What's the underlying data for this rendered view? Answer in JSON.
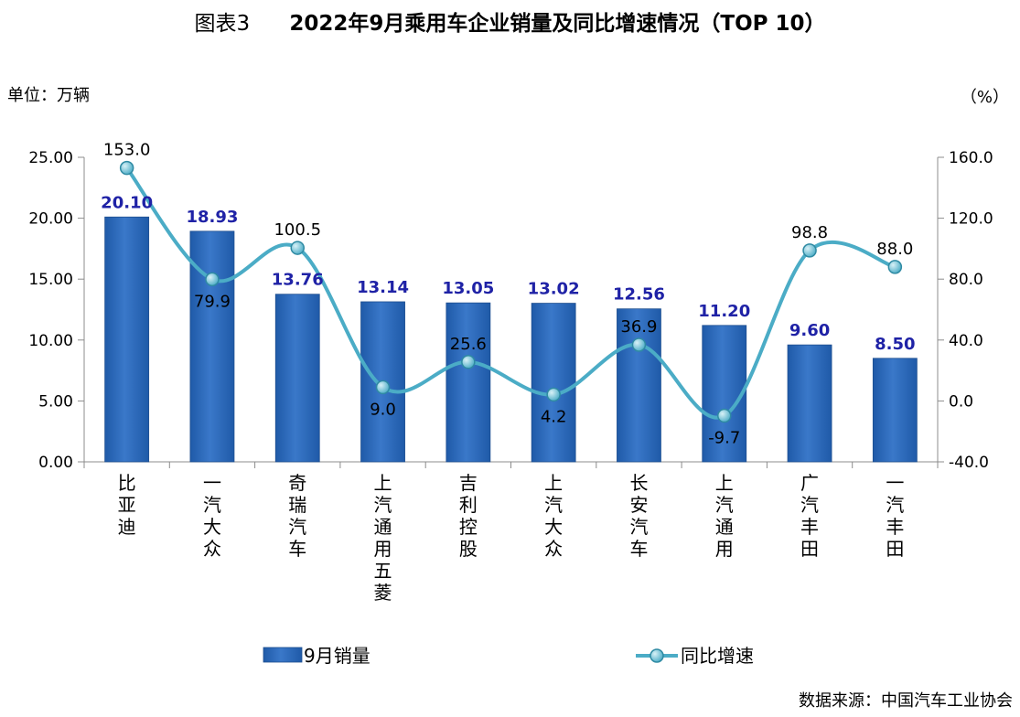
{
  "header": {
    "prefix": "图表3",
    "title": "2022年9月乘用车企业销量及同比增速情况（TOP 10）"
  },
  "units": {
    "left": "单位：万辆",
    "right": "（%）"
  },
  "source": "数据来源：中国汽车工业协会",
  "colors": {
    "bar": "#3a78c9",
    "bar_dark": "#1f5aa8",
    "line": "#4bacc6",
    "bar_label": "#1f22a6"
  },
  "chart_data": {
    "type": "bar",
    "categories": [
      "比亚迪",
      "一汽大众",
      "奇瑞汽车",
      "上汽通用五菱",
      "吉利控股",
      "上汽大众",
      "长安汽车",
      "上汽通用",
      "广汽丰田",
      "一汽丰田"
    ],
    "series": [
      {
        "name": "9月销量",
        "type": "bar",
        "axis": "left",
        "values": [
          20.1,
          18.93,
          13.76,
          13.14,
          13.05,
          13.02,
          12.56,
          11.2,
          9.6,
          8.5
        ],
        "labels": [
          "20.10",
          "18.93",
          "13.76",
          "13.14",
          "13.05",
          "13.02",
          "12.56",
          "11.20",
          "9.60",
          "8.50"
        ]
      },
      {
        "name": "同比增速",
        "type": "line",
        "axis": "right",
        "values": [
          153.0,
          79.9,
          100.5,
          9.0,
          25.6,
          4.2,
          36.9,
          -9.7,
          98.8,
          88.0
        ],
        "labels": [
          "153.0",
          "79.9",
          "100.5",
          "9.0",
          "25.6",
          "4.2",
          "36.9",
          "-9.7",
          "98.8",
          "88.0"
        ]
      }
    ],
    "ylim_left": [
      0,
      25
    ],
    "yticks_left": [
      "0.00",
      "5.00",
      "10.00",
      "15.00",
      "20.00",
      "25.00"
    ],
    "ylim_right": [
      -40,
      160
    ],
    "yticks_right": [
      "-40.0",
      "0.0",
      "40.0",
      "80.0",
      "120.0",
      "160.0"
    ],
    "grid": false,
    "legend": "bottom"
  }
}
